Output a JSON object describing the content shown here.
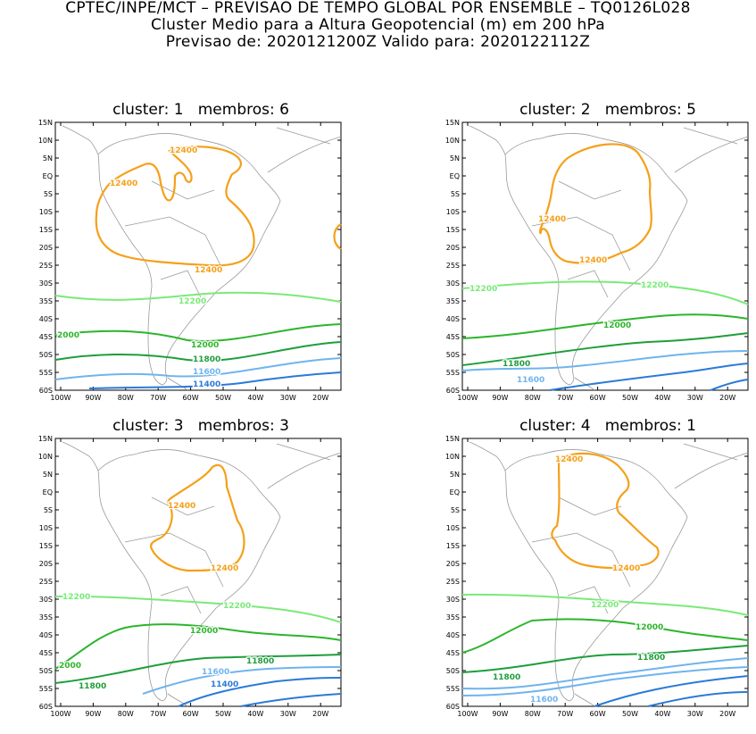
{
  "header": {
    "line1": "CPTEC/INPE/MCT – PREVISAO DE TEMPO GLOBAL POR ENSEMBLE – TQ0126L028",
    "line2": "Cluster Medio para a Altura Geopotencial (m) em 200 hPa",
    "line3": "Previsao de: 2020121200Z    Valido para: 2020122112Z"
  },
  "axes": {
    "lat_labels": [
      "15N",
      "10N",
      "5N",
      "EQ",
      "5S",
      "10S",
      "15S",
      "20S",
      "25S",
      "30S",
      "35S",
      "40S",
      "45S",
      "50S",
      "55S",
      "60S"
    ],
    "lon_labels": [
      "100W",
      "90W",
      "80W",
      "70W",
      "60W",
      "50W",
      "40W",
      "30W",
      "20W"
    ]
  },
  "colors": {
    "c12400": "#f5a01a",
    "c12200": "#79ea78",
    "c12000": "#2cb52c",
    "c11800": "#1e9e3a",
    "c11600": "#6fb4ee",
    "c11400": "#2a7ad8",
    "coast": "#9a9a9a"
  },
  "panels": [
    {
      "title": "cluster: 1   membros: 6",
      "labels": {
        "l12400a": "12400",
        "l12400b": "12400",
        "l12400c": "12400",
        "l12200": "12200",
        "l12000a": "2000",
        "l12000b": "12000",
        "l11800": "11800",
        "l11600": "11600",
        "l11400": "11400"
      }
    },
    {
      "title": "cluster: 2   membros: 5",
      "labels": {
        "l12400a": "12400",
        "l12400b": "12400",
        "l12200a": "12200",
        "l12200b": "12200",
        "l12000": "12000",
        "l11800": "11800",
        "l11600": "11600"
      }
    },
    {
      "title": "cluster: 3   membros: 3",
      "labels": {
        "l12400a": "12400",
        "l12400b": "12400",
        "l12200a": "12200",
        "l12200b": "12200",
        "l12000a": "12000",
        "l12000b": "2000",
        "l11800a": "11800",
        "l11800b": "11800",
        "l11600": "11600",
        "l11400": "11400"
      }
    },
    {
      "title": "cluster: 4   membros: 1",
      "labels": {
        "l12400a": "12400",
        "l12400b": "12400",
        "l12200": "12200",
        "l12000": "12000",
        "l11800a": "11800",
        "l11800b": "11800",
        "l11600": "11600"
      }
    }
  ]
}
